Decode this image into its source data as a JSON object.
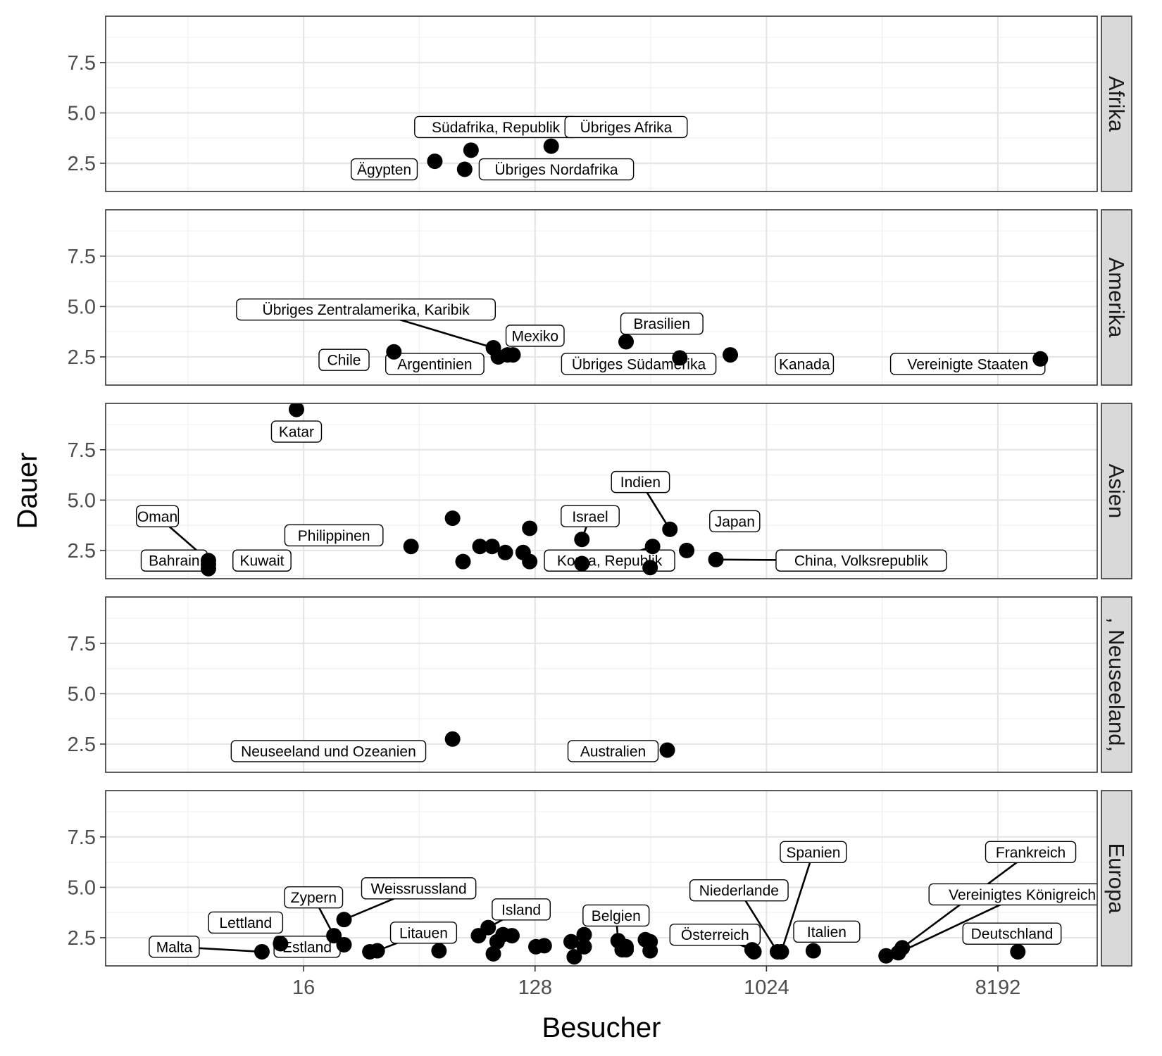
{
  "chart_data": {
    "type": "scatter",
    "xlabel": "Besucher",
    "ylabel": "Dauer",
    "x_scale": "log2",
    "x_ticks": [
      16,
      128,
      1024,
      8192
    ],
    "x_range": [
      2.7,
      20000
    ],
    "y_ticks": [
      "2.5",
      "5.0",
      "7.5"
    ],
    "y_range": [
      1.1,
      9.8
    ],
    "grid": true,
    "facets": [
      {
        "name": "Afrika",
        "points": [
          {
            "label": "Ägypten",
            "x": 52,
            "y": 2.6
          },
          {
            "label": "Südafrika, Republik",
            "x": 72,
            "y": 3.15
          },
          {
            "label": "Übriges Nordafrika",
            "x": 68,
            "y": 2.2
          },
          {
            "label": "Übriges Afrika",
            "x": 148,
            "y": 3.35
          }
        ]
      },
      {
        "name": "Amerika",
        "points": [
          {
            "label": "Chile",
            "x": 36,
            "y": 2.75
          },
          {
            "label": "Übriges Zentralamerika, Karibik",
            "x": 88,
            "y": 2.95
          },
          {
            "label": "Mexiko",
            "x": 100,
            "y": 2.6
          },
          {
            "label": "Argentinien",
            "x": 92,
            "y": 2.5
          },
          {
            "label": "",
            "x": 105,
            "y": 2.6
          },
          {
            "label": "Brasilien",
            "x": 290,
            "y": 3.25
          },
          {
            "label": "Übriges Südamerika",
            "x": 470,
            "y": 2.45
          },
          {
            "label": "Kanada",
            "x": 740,
            "y": 2.6
          },
          {
            "label": "Vereinigte Staaten",
            "x": 12000,
            "y": 2.4
          }
        ]
      },
      {
        "name": "Asien",
        "points": [
          {
            "label": "Katar",
            "x": 15,
            "y": 9.5
          },
          {
            "label": "Oman",
            "x": 6.8,
            "y": 2.0
          },
          {
            "label": "Bahrain",
            "x": 6.8,
            "y": 1.6
          },
          {
            "label": "Kuwait",
            "x": 6.8,
            "y": 1.8
          },
          {
            "label": "Philippinen",
            "x": 42,
            "y": 2.7
          },
          {
            "label": "",
            "x": 61,
            "y": 4.1
          },
          {
            "label": "",
            "x": 67,
            "y": 1.95
          },
          {
            "label": "",
            "x": 78,
            "y": 2.7
          },
          {
            "label": "",
            "x": 87,
            "y": 2.7
          },
          {
            "label": "",
            "x": 98,
            "y": 2.4
          },
          {
            "label": "",
            "x": 115,
            "y": 2.4
          },
          {
            "label": "",
            "x": 122,
            "y": 3.6
          },
          {
            "label": "",
            "x": 122,
            "y": 1.95
          },
          {
            "label": "Israel",
            "x": 195,
            "y": 3.05
          },
          {
            "label": "",
            "x": 195,
            "y": 1.85
          },
          {
            "label": "Korea, Republik",
            "x": 368,
            "y": 2.7
          },
          {
            "label": "",
            "x": 360,
            "y": 1.65
          },
          {
            "label": "Indien",
            "x": 430,
            "y": 3.55
          },
          {
            "label": "Japan",
            "x": 500,
            "y": 2.5
          },
          {
            "label": "China, Volksrepublik",
            "x": 650,
            "y": 2.05
          }
        ]
      },
      {
        "name": "Australien, Neuseeland, Ozeanien",
        "strip_text": ", Neuseeland,",
        "points": [
          {
            "label": "Neuseeland und Ozeanien",
            "x": 61,
            "y": 2.75
          },
          {
            "label": "Australien",
            "x": 420,
            "y": 2.2
          }
        ]
      },
      {
        "name": "Europa",
        "points": [
          {
            "label": "Malta",
            "x": 11,
            "y": 1.8
          },
          {
            "label": "Lettland",
            "x": 13,
            "y": 2.2
          },
          {
            "label": "Zypern",
            "x": 21,
            "y": 2.6
          },
          {
            "label": "Weissrussland",
            "x": 23,
            "y": 3.4
          },
          {
            "label": "Estland",
            "x": 23,
            "y": 2.15
          },
          {
            "label": "",
            "x": 29,
            "y": 1.8
          },
          {
            "label": "Litauen",
            "x": 31,
            "y": 1.85
          },
          {
            "label": "",
            "x": 54,
            "y": 1.85
          },
          {
            "label": "",
            "x": 77,
            "y": 2.6
          },
          {
            "label": "Island",
            "x": 84,
            "y": 3.0
          },
          {
            "label": "",
            "x": 88,
            "y": 1.7
          },
          {
            "label": "",
            "x": 91,
            "y": 2.3
          },
          {
            "label": "",
            "x": 96,
            "y": 2.65
          },
          {
            "label": "",
            "x": 104,
            "y": 2.6
          },
          {
            "label": "",
            "x": 129,
            "y": 2.05
          },
          {
            "label": "",
            "x": 139,
            "y": 2.1
          },
          {
            "label": "",
            "x": 177,
            "y": 2.3
          },
          {
            "label": "",
            "x": 182,
            "y": 1.55
          },
          {
            "label": "",
            "x": 199,
            "y": 2.65
          },
          {
            "label": "",
            "x": 199,
            "y": 2.05
          },
          {
            "label": "Belgien",
            "x": 270,
            "y": 2.35
          },
          {
            "label": "",
            "x": 280,
            "y": 1.9
          },
          {
            "label": "",
            "x": 290,
            "y": 2.05
          },
          {
            "label": "",
            "x": 290,
            "y": 1.9
          },
          {
            "label": "",
            "x": 345,
            "y": 2.4
          },
          {
            "label": "",
            "x": 360,
            "y": 2.3
          },
          {
            "label": "",
            "x": 360,
            "y": 1.85
          },
          {
            "label": "Österreich",
            "x": 900,
            "y": 1.9
          },
          {
            "label": "",
            "x": 915,
            "y": 1.8
          },
          {
            "label": "Niederlande",
            "x": 1130,
            "y": 1.8
          },
          {
            "label": "Spanien",
            "x": 1170,
            "y": 1.8
          },
          {
            "label": "Italien",
            "x": 1560,
            "y": 1.85
          },
          {
            "label": "",
            "x": 3000,
            "y": 1.6
          },
          {
            "label": "Vereinigtes Königreich",
            "x": 3350,
            "y": 1.75
          },
          {
            "label": "Frankreich",
            "x": 3470,
            "y": 2.0
          },
          {
            "label": "Deutschland",
            "x": 9800,
            "y": 1.8
          }
        ]
      }
    ],
    "labels": {
      "Afrika": [
        {
          "text": "Südafrika, Republik",
          "x": 90,
          "y": 4.3,
          "seg": false
        },
        {
          "text": "Übriges Afrika",
          "x": 290,
          "y": 4.3,
          "seg": false
        },
        {
          "text": "Ägypten",
          "x": 33,
          "y": 2.2,
          "seg": false
        },
        {
          "text": "Übriges Nordafrika",
          "x": 155,
          "y": 2.2,
          "seg": false
        }
      ],
      "Amerika": [
        {
          "text": "Übriges Zentralamerika, Karibik",
          "x": 28,
          "y": 4.85,
          "seg": true
        },
        {
          "text": "Mexiko",
          "x": 128,
          "y": 3.55,
          "seg": false
        },
        {
          "text": "Brasilien",
          "x": 400,
          "y": 4.15,
          "seg": false
        },
        {
          "text": "Chile",
          "x": 23,
          "y": 2.35,
          "seg": false
        },
        {
          "text": "Argentinien",
          "x": 52,
          "y": 2.15,
          "seg": false
        },
        {
          "text": "Übriges Südamerika",
          "x": 325,
          "y": 2.15,
          "seg": false
        },
        {
          "text": "Kanada",
          "x": 1440,
          "y": 2.15,
          "seg": false
        },
        {
          "text": "Vereinigte Staaten",
          "x": 6250,
          "y": 2.15,
          "seg": false
        }
      ],
      "Asien": [
        {
          "text": "Katar",
          "x": 15,
          "y": 8.4,
          "seg": false
        },
        {
          "text": "Indien",
          "x": 330,
          "y": 5.9,
          "seg": true
        },
        {
          "text": "Oman",
          "x": 4.3,
          "y": 4.2,
          "seg": true
        },
        {
          "text": "Israel",
          "x": 210,
          "y": 4.2,
          "seg": true
        },
        {
          "text": "Japan",
          "x": 770,
          "y": 3.95,
          "seg": false
        },
        {
          "text": "Philippinen",
          "x": 21,
          "y": 3.25,
          "seg": false
        },
        {
          "text": "Bahrain",
          "x": 5.0,
          "y": 2.0,
          "seg": false
        },
        {
          "text": "Kuwait",
          "x": 11,
          "y": 2.0,
          "seg": false
        },
        {
          "text": "Korea, Republik",
          "x": 250,
          "y": 2.0,
          "seg": true
        },
        {
          "text": "China, Volksrepublik",
          "x": 2400,
          "y": 2.0,
          "seg": true
        }
      ],
      "Australien, Neuseeland, Ozeanien": [
        {
          "text": "Neuseeland und Ozeanien",
          "x": 20,
          "y": 2.15,
          "seg": false
        },
        {
          "text": "Australien",
          "x": 258,
          "y": 2.15,
          "seg": false
        }
      ],
      "Europa": [
        {
          "text": "Spanien",
          "x": 1560,
          "y": 6.75,
          "seg": true
        },
        {
          "text": "Frankreich",
          "x": 11000,
          "y": 6.75,
          "seg": true
        },
        {
          "text": "Niederlande",
          "x": 800,
          "y": 4.85,
          "seg": true
        },
        {
          "text": "Weissrussland",
          "x": 45,
          "y": 4.95,
          "seg": true
        },
        {
          "text": "Vereinigtes Königreich",
          "x": 10200,
          "y": 4.65,
          "seg": true
        },
        {
          "text": "Zypern",
          "x": 17.5,
          "y": 4.5,
          "seg": true
        },
        {
          "text": "Island",
          "x": 113,
          "y": 3.9,
          "seg": true
        },
        {
          "text": "Belgien",
          "x": 265,
          "y": 3.6,
          "seg": true
        },
        {
          "text": "Lettland",
          "x": 9.5,
          "y": 3.25,
          "seg": false
        },
        {
          "text": "Litauen",
          "x": 47,
          "y": 2.75,
          "seg": true
        },
        {
          "text": "Österreich",
          "x": 645,
          "y": 2.65,
          "seg": true
        },
        {
          "text": "Italien",
          "x": 1760,
          "y": 2.8,
          "seg": false
        },
        {
          "text": "Deutschland",
          "x": 9300,
          "y": 2.7,
          "seg": false
        },
        {
          "text": "Malta",
          "x": 5.0,
          "y": 2.05,
          "seg": true
        },
        {
          "text": "Estland",
          "x": 16.5,
          "y": 2.05,
          "seg": false
        }
      ]
    }
  }
}
